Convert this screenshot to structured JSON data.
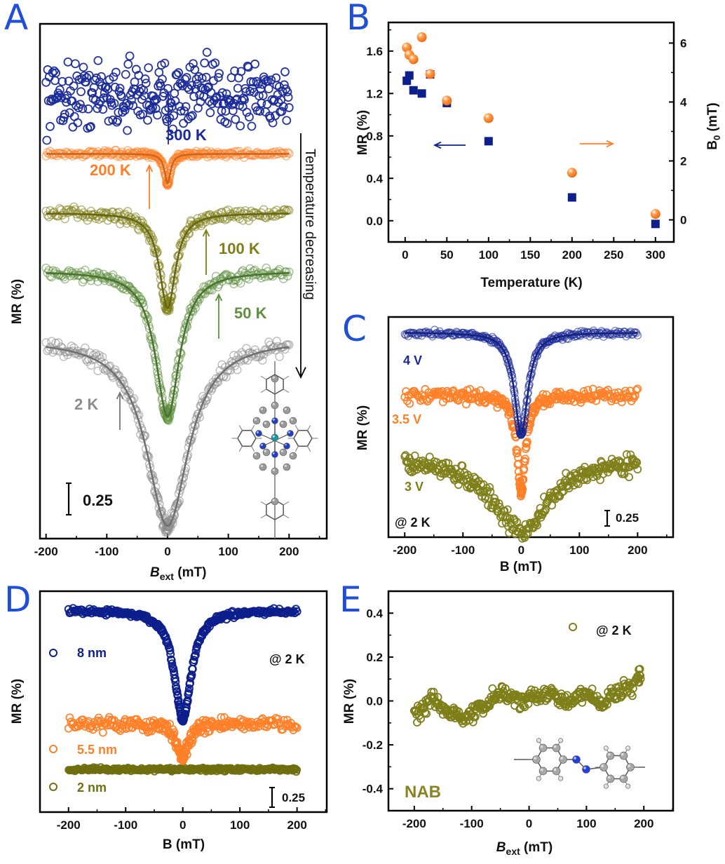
{
  "figure": {
    "panel_labels": [
      "A",
      "B",
      "C",
      "D",
      "E"
    ]
  },
  "chart_data": [
    {
      "panel": "A",
      "type": "scatter",
      "title": "",
      "xlabel_main": "B",
      "xlabel_sub": "ext",
      "xlabel_unit": " (mT)",
      "ylabel": "MR (%)",
      "xlim": [
        -210,
        262
      ],
      "ylim": [
        0,
        4.0
      ],
      "xticks": [
        -200,
        -100,
        0,
        100,
        200
      ],
      "xtick_labels": [
        "-200",
        "-100",
        "0",
        "100",
        "200"
      ],
      "scale_bar": {
        "value": 0.25,
        "label": "0.25"
      },
      "side_annotation": "Temperature decreasing",
      "series": [
        {
          "name": "300 K",
          "label": "300 K",
          "color": "#1a2a9a",
          "fit": false,
          "noise": 0.22,
          "baseline": 3.45,
          "depth": 0.0,
          "width": 30,
          "slope": 0.0
        },
        {
          "name": "200 K",
          "label": "200 K",
          "color": "#ff7f27",
          "fit": true,
          "noise": 0.02,
          "baseline": 2.99,
          "depth": 0.23,
          "width": 6,
          "slope": 0.0
        },
        {
          "name": "100 K",
          "label": "100 K",
          "color": "#7f7f1a",
          "fit": true,
          "noise": 0.04,
          "baseline": 2.53,
          "depth": 0.74,
          "width": 16,
          "slope": 0.0
        },
        {
          "name": "50 K",
          "label": "50 K",
          "color": "#5f8f3f",
          "fit": true,
          "noise": 0.04,
          "baseline": 2.08,
          "depth": 1.13,
          "width": 24,
          "slope": 0.0
        },
        {
          "name": "2 K",
          "label": "2 K",
          "color": "#8c8c8c",
          "fit": true,
          "noise": 0.05,
          "baseline": 1.55,
          "depth": 1.45,
          "width": 42,
          "slope": 0.0
        }
      ],
      "inset": "molecule-structure"
    },
    {
      "panel": "B",
      "type": "scatter",
      "title": "",
      "xlabel": "Temperature (K)",
      "ylabel": "MR (%)",
      "ylabel_right_main": "B",
      "ylabel_right_sub": "0",
      "ylabel_right_unit": " (mT)",
      "xlim": [
        -20,
        322
      ],
      "ylim": [
        -0.2,
        1.87
      ],
      "ylim_right": [
        -0.75,
        6.7
      ],
      "xticks": [
        0,
        50,
        100,
        150,
        200,
        250,
        300
      ],
      "xtick_labels": [
        "0",
        "50",
        "100",
        "150",
        "200",
        "250",
        "300"
      ],
      "yticks": [
        0.0,
        0.4,
        0.8,
        1.2,
        1.6
      ],
      "ytick_labels": [
        "0.0",
        "0.4",
        "0.8",
        "1.2",
        "1.6"
      ],
      "yticks_right": [
        0,
        2,
        4,
        6
      ],
      "ytick_right_labels": [
        "0",
        "2",
        "4",
        "6"
      ],
      "series": [
        {
          "name": "MR",
          "axis": "left",
          "marker": "square",
          "color": "#0d1f8c",
          "x": [
            2,
            5,
            10,
            20,
            30,
            50,
            100,
            200,
            300
          ],
          "y": [
            1.32,
            1.37,
            1.23,
            1.2,
            1.38,
            1.11,
            0.75,
            0.22,
            -0.03
          ]
        },
        {
          "name": "B0",
          "axis": "right",
          "marker": "sphere",
          "color": "#ff7f27",
          "x": [
            2,
            5,
            10,
            20,
            30,
            50,
            100,
            200,
            300
          ],
          "y": [
            5.85,
            5.6,
            5.45,
            6.2,
            4.95,
            4.05,
            3.45,
            1.6,
            0.2
          ]
        }
      ],
      "arrows": [
        {
          "direction": "left",
          "color": "#0d1f8c",
          "meaning": "MR axis"
        },
        {
          "direction": "right",
          "color": "#ff7f27",
          "meaning": "B0 axis"
        }
      ]
    },
    {
      "panel": "C",
      "type": "scatter",
      "title": "",
      "xlabel": "B (mT)",
      "ylabel": "MR (%)",
      "xlim": [
        -228,
        261
      ],
      "ylim": [
        0,
        3.57
      ],
      "xticks": [
        -200,
        -100,
        0,
        100,
        200
      ],
      "xtick_labels": [
        "-200",
        "-100",
        "0",
        "100",
        "200"
      ],
      "scale_bar": {
        "value": 0.25,
        "label": "0.25"
      },
      "annotation": "@ 2 K",
      "series": [
        {
          "name": "4 V",
          "label": "4 V",
          "color": "#1a2a9a",
          "fit": true,
          "noise": 0.04,
          "baseline": 3.32,
          "depth": 1.65,
          "width": 14,
          "slope": 0.0
        },
        {
          "name": "3.5 V",
          "label": "3.5 V",
          "color": "#ff7f27",
          "fit": false,
          "noise": 0.09,
          "baseline": 2.3,
          "depth": 1.55,
          "width": 9,
          "slope": 0.0
        },
        {
          "name": "3 V",
          "label": "3 V",
          "color": "#7f7f1a",
          "fit": false,
          "noise": 0.13,
          "baseline": 1.3,
          "depth": 1.2,
          "width": 60,
          "slope": 0.0
        }
      ]
    },
    {
      "panel": "D",
      "type": "scatter",
      "title": "",
      "xlabel": "B (mT)",
      "ylabel": "MR (%)",
      "xlim": [
        -250,
        252
      ],
      "ylim": [
        0,
        2.8
      ],
      "xticks": [
        -200,
        -100,
        0,
        100,
        200
      ],
      "xtick_labels": [
        "-200",
        "-100",
        "0",
        "100",
        "200"
      ],
      "scale_bar": {
        "value": 0.25,
        "label": "0.25"
      },
      "annotation": "@ 2 K",
      "series": [
        {
          "name": "8 nm",
          "label": "8 nm",
          "color": "#0d1f8c",
          "fit": false,
          "noise": 0.03,
          "baseline": 2.56,
          "depth": 1.38,
          "width": 18,
          "slope": 0.0
        },
        {
          "name": "5.5 nm",
          "label": "5.5 nm",
          "color": "#ff7f27",
          "fit": false,
          "noise": 0.07,
          "baseline": 1.12,
          "depth": 0.42,
          "width": 12,
          "slope": 0.0
        },
        {
          "name": "2 nm",
          "label": "2 nm",
          "color": "#6f6f10",
          "fit": false,
          "noise": 0.02,
          "baseline": 0.54,
          "depth": 0.0,
          "width": 10,
          "slope": 0.0
        }
      ]
    },
    {
      "panel": "E",
      "type": "scatter",
      "title": "",
      "xlabel_main": "B",
      "xlabel_sub": "ext",
      "xlabel_unit": " (mT)",
      "ylabel": "MR (%)",
      "xlim": [
        -245,
        251
      ],
      "ylim": [
        -0.5,
        0.5
      ],
      "xticks": [
        -200,
        -100,
        0,
        100,
        200
      ],
      "xtick_labels": [
        "-200",
        "-100",
        "0",
        "100",
        "200"
      ],
      "yticks": [
        -0.4,
        -0.2,
        0.0,
        0.2,
        0.4
      ],
      "ytick_labels": [
        "-0.4",
        "-0.2",
        "0.0",
        "0.2",
        "0.4"
      ],
      "legend": {
        "label": "@ 2 K",
        "position": "top-right"
      },
      "sample_label": "NAB",
      "series": [
        {
          "name": "@ 2 K",
          "color": "#7f7f1a",
          "x": [
            -200,
            -190,
            -180,
            -170,
            -160,
            -150,
            -140,
            -130,
            -120,
            -110,
            -100,
            -90,
            -80,
            -70,
            -60,
            -50,
            -40,
            -30,
            -20,
            -10,
            0,
            10,
            20,
            30,
            40,
            50,
            60,
            70,
            80,
            90,
            100,
            110,
            120,
            130,
            140,
            150,
            160,
            170,
            180,
            190,
            195
          ],
          "y": [
            -0.04,
            -0.06,
            -0.03,
            0.02,
            -0.01,
            -0.04,
            -0.06,
            -0.05,
            -0.07,
            -0.08,
            -0.06,
            -0.04,
            -0.03,
            -0.01,
            0.02,
            0.05,
            0.03,
            0.01,
            0.02,
            -0.02,
            0.01,
            0.04,
            0.02,
            0.03,
            0.05,
            0.02,
            0.0,
            -0.02,
            0.01,
            0.03,
            0.02,
            0.04,
            -0.01,
            0.0,
            0.03,
            0.02,
            0.05,
            0.07,
            0.06,
            0.1,
            0.14
          ],
          "noise": 0.03
        }
      ],
      "inset": "molecule-structure"
    }
  ]
}
